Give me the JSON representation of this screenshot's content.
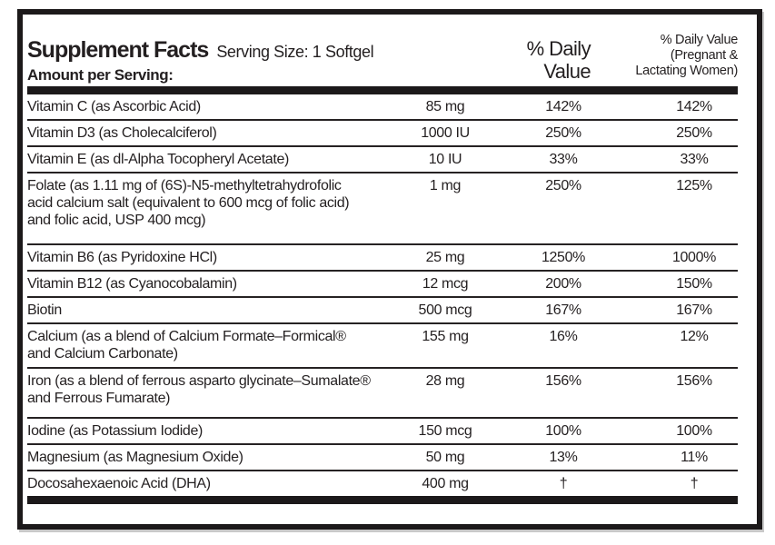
{
  "label": {
    "title": "Supplement Facts",
    "serving_size": "Serving Size: 1 Softgel",
    "amount_per_serving": "Amount per Serving:",
    "col_daily_value": "% Daily\nValue",
    "col_daily_value_pregnant": "% Daily Value\n(Pregnant &\nLactating Women)",
    "rows": [
      {
        "name": "Vitamin C (as Ascorbic Acid)",
        "amount": "85 mg",
        "dv": "142%",
        "dvp": "142%"
      },
      {
        "name": "Vitamin D3 (as Cholecalciferol)",
        "amount": "1000 IU",
        "dv": "250%",
        "dvp": "250%"
      },
      {
        "name": "Vitamin E (as dl-Alpha Tocopheryl Acetate)",
        "amount": "10 IU",
        "dv": "33%",
        "dvp": "33%"
      },
      {
        "name": "Folate (as 1.11 mg of (6S)-N5-methyltetrahydrofolic\nacid calcium salt (equivalent to 600 mcg of folic acid)\nand folic acid, USP 400 mcg)",
        "amount": "1 mg",
        "dv": "250%",
        "dvp": "125%"
      },
      {
        "name": "Vitamin B6 (as Pyridoxine HCl)",
        "amount": "25 mg",
        "dv": "1250%",
        "dvp": "1000%"
      },
      {
        "name": "Vitamin B12 (as Cyanocobalamin)",
        "amount": "12 mcg",
        "dv": "200%",
        "dvp": "150%"
      },
      {
        "name": "Biotin",
        "amount": "500 mcg",
        "dv": "167%",
        "dvp": "167%"
      },
      {
        "name": "Calcium (as a blend of Calcium Formate–Formical®\nand Calcium Carbonate)",
        "amount": "155 mg",
        "dv": "16%",
        "dvp": "12%"
      },
      {
        "name": "Iron (as a blend of ferrous asparto glycinate–Sumalate®\nand Ferrous Fumarate)",
        "amount": "28 mg",
        "dv": "156%",
        "dvp": "156%"
      },
      {
        "name": "Iodine (as Potassium Iodide)",
        "amount": "150 mcg",
        "dv": "100%",
        "dvp": "100%"
      },
      {
        "name": "Magnesium (as Magnesium Oxide)",
        "amount": "50 mg",
        "dv": "13%",
        "dvp": "11%"
      },
      {
        "name": "Docosahexaenoic Acid (DHA)",
        "amount": "400 mg",
        "dv": "†",
        "dvp": "†"
      }
    ]
  },
  "colors": {
    "text": "#231f20",
    "border": "#1c191a",
    "background": "#ffffff"
  }
}
